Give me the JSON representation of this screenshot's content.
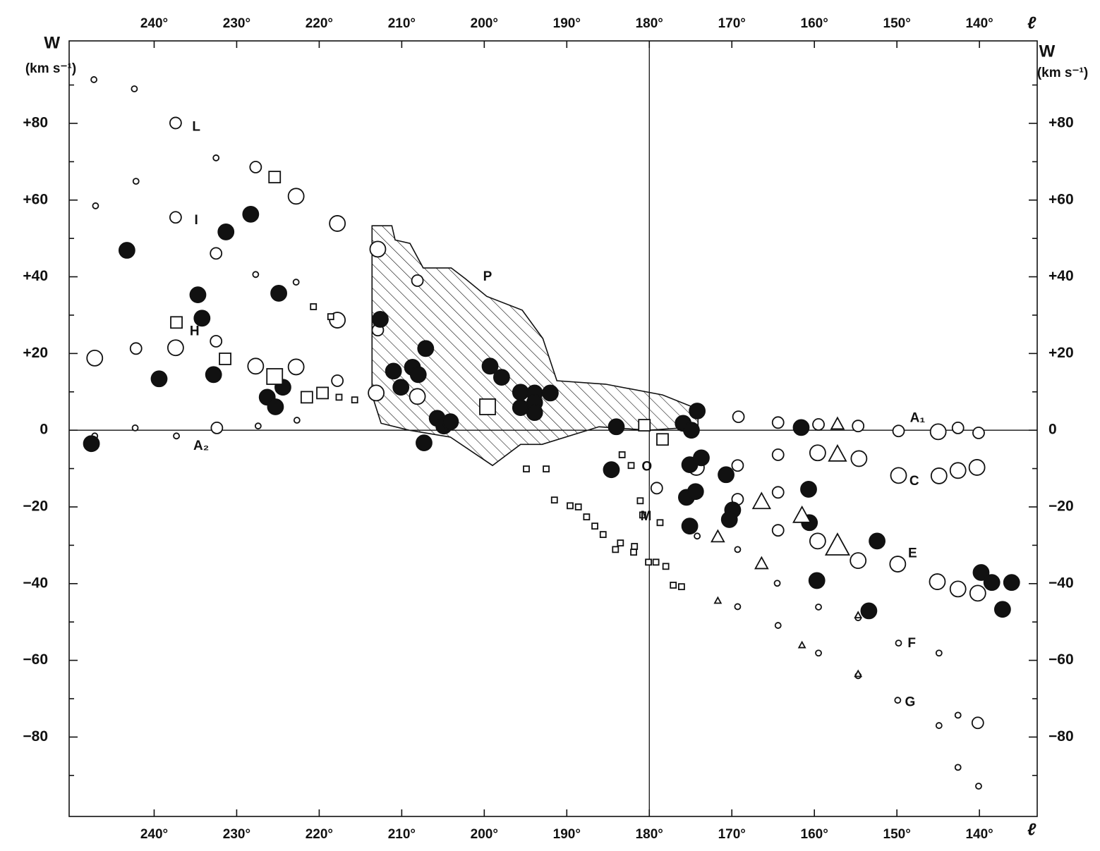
{
  "chart_data": {
    "type": "scatter",
    "x_label": "ℓ",
    "y_label": "W",
    "y_label_unit": "(km s⁻¹)",
    "xlim": [
      250.3,
      133
    ],
    "ylim": [
      -100.7,
      101.5
    ],
    "xticks": [
      {
        "value": 240,
        "label": "240°"
      },
      {
        "value": 230,
        "label": "230°"
      },
      {
        "value": 220,
        "label": "220°"
      },
      {
        "value": 210,
        "label": "210°"
      },
      {
        "value": 200,
        "label": "200°"
      },
      {
        "value": 190,
        "label": "190°"
      },
      {
        "value": 180,
        "label": "180°"
      },
      {
        "value": 170,
        "label": "170°"
      },
      {
        "value": 160,
        "label": "160°"
      },
      {
        "value": 150,
        "label": "150°"
      },
      {
        "value": 140,
        "label": "140°"
      }
    ],
    "yticks": [
      {
        "value": 80,
        "label": "+80"
      },
      {
        "value": 60,
        "label": "+60"
      },
      {
        "value": 40,
        "label": "+40"
      },
      {
        "value": 20,
        "label": "+20"
      },
      0,
      {
        "value": -20,
        "label": "−20"
      },
      {
        "value": -40,
        "label": "−40"
      },
      {
        "value": -60,
        "label": "−60"
      },
      {
        "value": -80,
        "label": "−80"
      }
    ],
    "minor_yticks": [
      90,
      70,
      50,
      30,
      10,
      -10,
      -30,
      -50,
      -70,
      -90
    ],
    "reference_lines": {
      "x": 180,
      "y": 0
    },
    "region": {
      "hatch": true,
      "color": "#111",
      "x": [
        213.6,
        211.2,
        210.8,
        209.0,
        207.4,
        204.0,
        202.3,
        199.7,
        195.4,
        192.9,
        191.2,
        185.3,
        178.4,
        174.1,
        174.1,
        180.1,
        186.1,
        193.0,
        195.6,
        199.0,
        204.1,
        209.1,
        212.5,
        213.6
      ],
      "y": [
        53.3,
        53.3,
        49.6,
        48.7,
        42.3,
        42.3,
        39.5,
        34.9,
        31.3,
        23.9,
        12.9,
        12.0,
        9.2,
        5.5,
        0.9,
        0.0,
        0.9,
        -3.7,
        -3.7,
        -9.2,
        -1.8,
        0,
        1.8,
        9.2
      ]
    },
    "series": [
      {
        "marker": "circle",
        "filled": false,
        "color": "#111",
        "x": [
          247.3,
          242.4,
          237.4,
          232.5,
          227.7,
          222.8,
          217.8,
          247.1,
          242.2,
          237.4,
          232.5,
          227.7,
          222.8,
          217.8,
          247.2,
          242.2,
          237.4,
          232.5,
          227.7,
          222.8,
          217.8,
          227.4,
          222.7,
          232.4,
          212.9,
          212.9,
          213.1,
          208.1,
          208.1,
          169.2,
          164.4,
          159.5,
          154.7,
          149.8,
          145.0,
          142.6,
          140.1,
          169.3,
          164.4,
          159.6,
          154.6,
          149.8,
          144.9,
          142.6,
          140.3,
          169.3,
          164.4,
          164.4,
          159.6,
          154.7,
          149.9,
          145.1,
          142.6,
          140.2,
          174.3,
          179.1,
          169.3,
          164.5,
          164.4,
          169.3,
          159.5,
          159.5,
          154.7,
          154.7,
          149.8,
          149.9,
          144.9,
          144.9,
          142.6,
          140.2,
          142.6,
          140.1,
          237.3,
          247.2,
          242.3,
          174.2
        ],
        "values": [
          91.4,
          89.0,
          80.1,
          71.0,
          68.6,
          61.0,
          53.9,
          58.5,
          64.9,
          55.5,
          46.1,
          40.6,
          38.6,
          28.7,
          18.8,
          21.3,
          21.5,
          23.2,
          16.7,
          16.5,
          12.9,
          1.1,
          2.6,
          0.6,
          47.2,
          26.1,
          9.7,
          39.0,
          8.8,
          3.5,
          2.0,
          1.5,
          1.1,
          -0.2,
          -0.4,
          0.6,
          -0.7,
          -9.2,
          -6.4,
          -5.9,
          -7.4,
          -11.8,
          -11.9,
          -10.5,
          -9.7,
          -18.0,
          -16.2,
          -26.1,
          -28.9,
          -34.0,
          -34.9,
          -39.5,
          -41.4,
          -42.5,
          -9.7,
          -15.1,
          -31.1,
          -39.9,
          -50.9,
          -46.0,
          -46.1,
          -58.1,
          -48.9,
          -64.0,
          -55.5,
          -70.4,
          -58.1,
          -77.0,
          -74.3,
          -76.3,
          -87.9,
          -92.8,
          -1.5,
          -1.5,
          0.6,
          -27.6
        ],
        "sizes": [
          1,
          1,
          2,
          1,
          2,
          3,
          3,
          1,
          1,
          2,
          2,
          1,
          1,
          3,
          3,
          2,
          3,
          2,
          3,
          3,
          2,
          1,
          1,
          2,
          3,
          2,
          3,
          2,
          3,
          2,
          2,
          2,
          2,
          2,
          3,
          2,
          2,
          2,
          2,
          3,
          3,
          3,
          3,
          3,
          3,
          2,
          2,
          2,
          3,
          3,
          3,
          3,
          3,
          3,
          3,
          2,
          1,
          1,
          1,
          1,
          1,
          1,
          1,
          1,
          1,
          1,
          1,
          1,
          1,
          2,
          1,
          1,
          1,
          1,
          1,
          1
        ]
      },
      {
        "marker": "circle",
        "filled": true,
        "color": "#111",
        "x": [
          247.6,
          243.3,
          239.4,
          234.7,
          234.2,
          232.8,
          231.3,
          228.3,
          226.3,
          225.3,
          224.9,
          224.4,
          212.6,
          211.0,
          210.1,
          208.7,
          208.0,
          207.1,
          205.7,
          204.9,
          204.1,
          207.3,
          199.3,
          197.9,
          195.6,
          195.6,
          193.9,
          193.9,
          193.9,
          192.0,
          184.0,
          184.6,
          175.9,
          174.9,
          174.2,
          175.1,
          173.7,
          175.5,
          174.4,
          175.1,
          170.7,
          169.9,
          170.3,
          160.7,
          160.6,
          161.6,
          159.7,
          153.4,
          152.4,
          139.8,
          138.5,
          136.1,
          137.2
        ],
        "values": [
          -3.5,
          46.9,
          13.4,
          35.3,
          29.2,
          14.5,
          51.7,
          56.3,
          8.6,
          6.1,
          35.7,
          11.2,
          28.9,
          15.4,
          11.2,
          16.4,
          14.5,
          21.3,
          3.1,
          1.1,
          2.2,
          -3.3,
          16.7,
          13.8,
          9.9,
          5.9,
          9.7,
          7.2,
          4.6,
          9.7,
          0.9,
          -10.3,
          1.8,
          0,
          5.0,
          -9.0,
          -7.2,
          -17.5,
          -16.0,
          -25.0,
          -11.6,
          -20.8,
          -23.3,
          -15.4,
          -24.1,
          0.7,
          -39.2,
          -47.1,
          -28.9,
          -37.1,
          -39.7,
          -39.7,
          -46.7
        ]
      },
      {
        "marker": "square",
        "filled": false,
        "color": "#111",
        "x": [
          237.3,
          231.4,
          225.4,
          225.4,
          221.5,
          219.6,
          217.6,
          215.7,
          199.6,
          178.4,
          180.6,
          181.1,
          180.8,
          178.7,
          183.5,
          181.8,
          194.9,
          192.5,
          191.5,
          189.6,
          188.6,
          187.6,
          186.6,
          185.6,
          184.1,
          181.9,
          180.1,
          179.2,
          178.0,
          177.1,
          176.1,
          183.3,
          182.2,
          220.7,
          218.6
        ],
        "values": [
          28.1,
          18.6,
          14.0,
          66.0,
          8.6,
          9.7,
          8.6,
          7.9,
          6.1,
          -2.4,
          1.3,
          -18.4,
          -22.1,
          -24.1,
          -29.4,
          -30.3,
          -10.1,
          -10.1,
          -18.2,
          -19.7,
          -20.0,
          -22.6,
          -25.0,
          -27.2,
          -31.1,
          -31.8,
          -34.4,
          -34.4,
          -35.5,
          -40.4,
          -40.8,
          -6.4,
          -9.2,
          32.2,
          29.6
        ],
        "sizes": [
          2,
          2,
          3,
          2,
          2,
          2,
          1,
          1,
          3,
          2,
          2,
          1,
          1,
          1,
          1,
          1,
          1,
          1,
          1,
          1,
          1,
          1,
          1,
          1,
          1,
          1,
          1,
          1,
          1,
          1,
          1,
          1,
          1,
          1,
          1
        ]
      },
      {
        "marker": "triangle",
        "filled": false,
        "color": "#111",
        "x": [
          157.2,
          166.4,
          161.5,
          157.2,
          171.7,
          166.4,
          171.7,
          161.5,
          157.2,
          154.7,
          154.7
        ],
        "values": [
          -6.4,
          -18.8,
          -22.4,
          -30.3,
          -27.9,
          -34.9,
          -44.5,
          -56.1,
          1.5,
          -48.3,
          -63.6
        ],
        "sizes": [
          3,
          3,
          3,
          4,
          2,
          2,
          1,
          1,
          2,
          1,
          1
        ]
      }
    ],
    "annotations": [
      {
        "text": "L",
        "x": 234.9,
        "y": 79.0
      },
      {
        "text": "I",
        "x": 234.9,
        "y": 54.6
      },
      {
        "text": "H",
        "x": 235.1,
        "y": 25.7
      },
      {
        "text": "A₂",
        "x": 234.3,
        "y": -4.2
      },
      {
        "text": "P",
        "x": 199.6,
        "y": 39.9
      },
      {
        "text": "O",
        "x": 180.3,
        "y": -9.6
      },
      {
        "text": "M",
        "x": 180.4,
        "y": -22.6
      },
      {
        "text": "A₁",
        "x": 147.5,
        "y": 3.1
      },
      {
        "text": "C",
        "x": 147.9,
        "y": -13.4
      },
      {
        "text": "E",
        "x": 148.1,
        "y": -32.2
      },
      {
        "text": "F",
        "x": 148.2,
        "y": -55.7
      },
      {
        "text": "G",
        "x": 148.4,
        "y": -71.0
      }
    ]
  }
}
